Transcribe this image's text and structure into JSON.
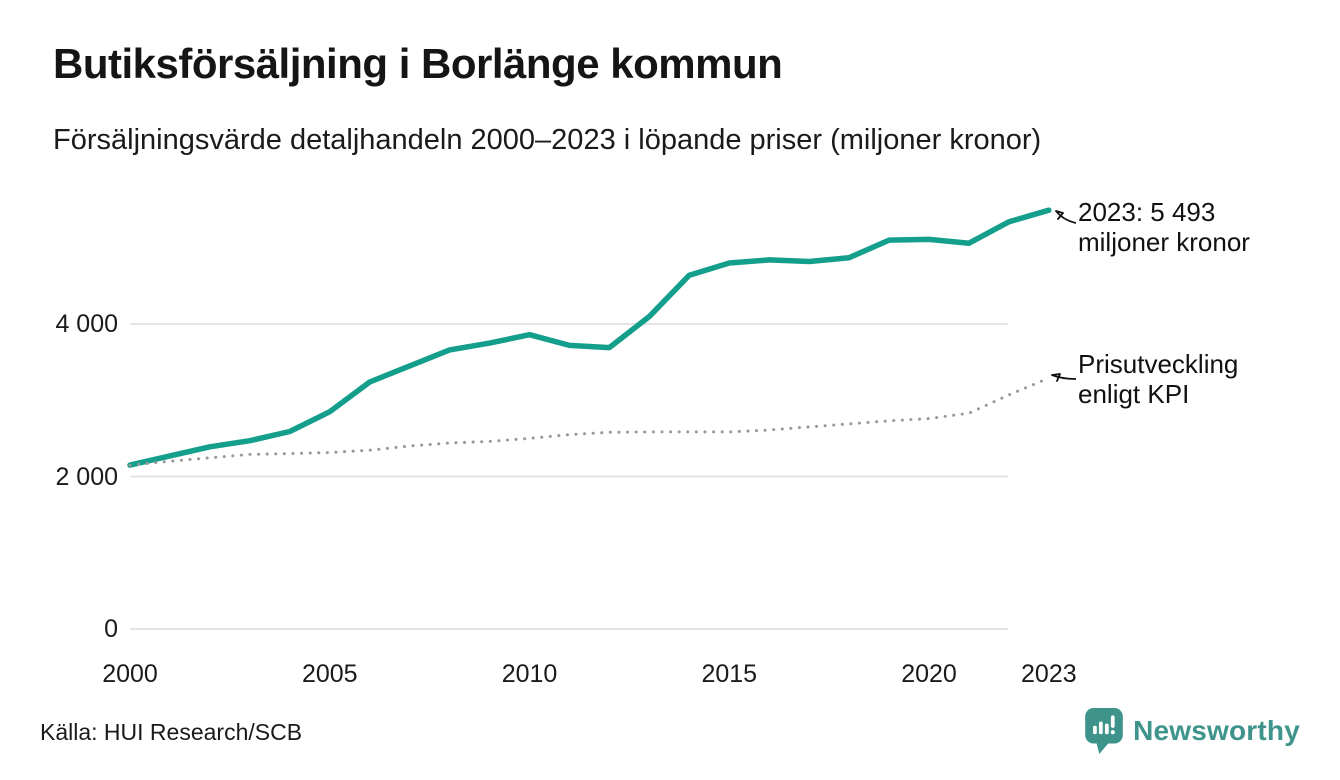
{
  "header": {
    "title": "Butiksförsäljning i Borlänge kommun",
    "subtitle": "Försäljningsvärde detaljhandeln 2000–2023 i löpande priser (miljoner kronor)"
  },
  "annotations": {
    "latest": {
      "line1": "2023: 5 493",
      "line2": "miljoner kronor"
    },
    "kpi": {
      "line1": "Prisutveckling",
      "line2": "enligt KPI"
    }
  },
  "footer": {
    "source": "Källa: HUI Research/SCB",
    "brand": "Newsworthy"
  },
  "colors": {
    "accent": "#149e8c",
    "kpi_line": "#999999",
    "gridline": "#e4e4e6",
    "text": "#1a1a1a",
    "brand_teal": "#3e948b"
  },
  "chart_data": {
    "type": "line",
    "title": "Butiksförsäljning i Borlänge kommun",
    "subtitle": "Försäljningsvärde detaljhandeln 2000–2023 i löpande priser (miljoner kronor)",
    "xlabel": "",
    "ylabel": "miljoner kronor",
    "x": [
      2000,
      2001,
      2002,
      2003,
      2004,
      2005,
      2006,
      2007,
      2008,
      2009,
      2010,
      2011,
      2012,
      2013,
      2014,
      2015,
      2016,
      2017,
      2018,
      2019,
      2020,
      2021,
      2022,
      2023
    ],
    "series": [
      {
        "name": "Butiksförsäljning i löpande priser",
        "style": "solid",
        "color": "#149e8c",
        "values": [
          2149,
          2270,
          2390,
          2470,
          2590,
          2850,
          3240,
          3450,
          3660,
          3750,
          3860,
          3720,
          3690,
          4100,
          4640,
          4800,
          4840,
          4820,
          4870,
          5100,
          5110,
          5060,
          5340,
          5493
        ]
      },
      {
        "name": "Prisutveckling enligt KPI",
        "style": "dotted",
        "color": "#999999",
        "values": [
          2149,
          2200,
          2245,
          2290,
          2300,
          2315,
          2345,
          2400,
          2440,
          2460,
          2500,
          2550,
          2580,
          2585,
          2585,
          2585,
          2610,
          2650,
          2690,
          2730,
          2760,
          2830,
          3070,
          3290
        ]
      }
    ],
    "annotations": [
      {
        "target_series": 0,
        "target_x": 2023,
        "text": "2023: 5 493 miljoner kronor"
      },
      {
        "target_series": 1,
        "target_x": 2023,
        "text": "Prisutveckling enligt KPI"
      }
    ],
    "yticks": [
      {
        "value": 0,
        "label": "0"
      },
      {
        "value": 2000,
        "label": "2 000"
      },
      {
        "value": 4000,
        "label": "4 000"
      }
    ],
    "xticks": [
      {
        "value": 2000,
        "label": "2000"
      },
      {
        "value": 2005,
        "label": "2005"
      },
      {
        "value": 2010,
        "label": "2010"
      },
      {
        "value": 2015,
        "label": "2015"
      },
      {
        "value": 2020,
        "label": "2020"
      },
      {
        "value": 2023,
        "label": "2023"
      }
    ],
    "ylim": [
      0,
      5900
    ],
    "xlim": [
      2000,
      2023
    ],
    "grid": "horizontal",
    "legend": "inline-annotations"
  }
}
